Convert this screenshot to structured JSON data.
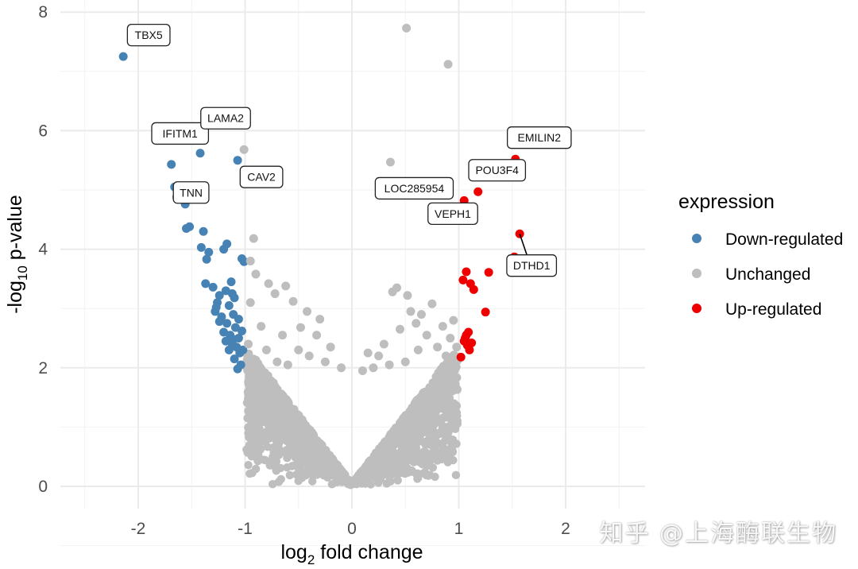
{
  "chart_data": {
    "type": "scatter",
    "title": "",
    "xlabel_main": "log",
    "xlabel_sub": "2",
    "xlabel_rest": " fold change",
    "ylabel_main": "-log",
    "ylabel_sub": "10",
    "ylabel_rest": " p-value",
    "xlim": [
      -2.5,
      2.5
    ],
    "ylim": [
      -0.2,
      8.2
    ],
    "xticks": [
      -2,
      -1,
      0,
      1,
      2
    ],
    "xtick_labels": [
      "-2",
      "-1",
      "0",
      "1",
      "2"
    ],
    "yticks": [
      0,
      2,
      4,
      6,
      8
    ],
    "ytick_labels": [
      "0",
      "2",
      "4",
      "6",
      "8"
    ],
    "grid": true,
    "legend": {
      "title": "expression",
      "position": "right",
      "entries": [
        {
          "label": "Down-regulated",
          "color": "#4682B4"
        },
        {
          "label": "Unchanged",
          "color": "#BEBEBE"
        },
        {
          "label": "Up-regulated",
          "color": "#EE0000"
        }
      ]
    },
    "series": [
      {
        "name": "Down-regulated",
        "color": "#4682B4",
        "points": [
          [
            -2.14,
            7.25
          ],
          [
            -1.69,
            5.43
          ],
          [
            -1.66,
            5.05
          ],
          [
            -1.62,
            4.93
          ],
          [
            -1.64,
            4.88
          ],
          [
            -1.56,
            4.76
          ],
          [
            -1.52,
            4.38
          ],
          [
            -1.55,
            4.35
          ],
          [
            -1.39,
            4.3
          ],
          [
            -1.42,
            5.62
          ],
          [
            -1.07,
            5.5
          ],
          [
            -1.45,
            4.88
          ],
          [
            -1.41,
            4.03
          ],
          [
            -1.34,
            3.95
          ],
          [
            -1.36,
            3.83
          ],
          [
            -1.2,
            4.0
          ],
          [
            -1.17,
            4.09
          ],
          [
            -1.03,
            3.84
          ],
          [
            -1.01,
            3.79
          ],
          [
            -1.37,
            3.42
          ],
          [
            -1.3,
            3.36
          ],
          [
            -1.24,
            3.22
          ],
          [
            -1.26,
            3.1
          ],
          [
            -1.18,
            3.3
          ],
          [
            -1.13,
            3.45
          ],
          [
            -1.12,
            3.25
          ],
          [
            -1.15,
            3.05
          ],
          [
            -1.1,
            3.18
          ],
          [
            -1.28,
            2.95
          ],
          [
            -1.22,
            2.86
          ],
          [
            -1.17,
            2.75
          ],
          [
            -1.11,
            2.9
          ],
          [
            -1.2,
            2.6
          ],
          [
            -1.14,
            2.55
          ],
          [
            -1.09,
            2.68
          ],
          [
            -1.06,
            2.5
          ],
          [
            -1.18,
            2.45
          ],
          [
            -1.12,
            2.4
          ],
          [
            -1.08,
            2.35
          ],
          [
            -1.05,
            2.25
          ],
          [
            -1.1,
            2.15
          ],
          [
            -1.04,
            2.05
          ],
          [
            -1.07,
            1.98
          ],
          [
            -1.15,
            2.3
          ],
          [
            -1.24,
            2.78
          ],
          [
            -1.03,
            2.62
          ],
          [
            -1.02,
            2.3
          ],
          [
            -1.11,
            2.48
          ],
          [
            -1.27,
            3.02
          ],
          [
            -1.06,
            2.82
          ]
        ]
      },
      {
        "name": "Unchanged",
        "color": "#BEBEBE",
        "points": [
          [
            0.51,
            7.73
          ],
          [
            0.9,
            7.12
          ],
          [
            -1.01,
            5.68
          ],
          [
            0.36,
            5.47
          ],
          [
            -0.92,
            4.18
          ],
          [
            -0.95,
            3.8
          ],
          [
            -0.9,
            3.58
          ],
          [
            -0.78,
            3.42
          ],
          [
            -0.62,
            3.38
          ],
          [
            -0.72,
            3.25
          ],
          [
            -0.55,
            3.12
          ],
          [
            -0.42,
            2.95
          ],
          [
            -0.3,
            2.82
          ],
          [
            -0.48,
            2.68
          ],
          [
            -0.65,
            2.55
          ],
          [
            -0.85,
            2.7
          ],
          [
            -0.95,
            3.1
          ],
          [
            -0.97,
            2.4
          ],
          [
            0.42,
            3.35
          ],
          [
            0.38,
            3.28
          ],
          [
            0.52,
            3.22
          ],
          [
            0.55,
            2.95
          ],
          [
            0.65,
            2.9
          ],
          [
            0.75,
            3.08
          ],
          [
            0.85,
            2.7
          ],
          [
            0.92,
            2.5
          ],
          [
            0.95,
            2.8
          ],
          [
            0.6,
            2.75
          ],
          [
            0.45,
            2.65
          ],
          [
            0.3,
            2.4
          ],
          [
            0.25,
            2.2
          ],
          [
            0.7,
            2.55
          ],
          [
            0.8,
            2.35
          ],
          [
            0.88,
            2.2
          ],
          [
            0.98,
            2.35
          ],
          [
            -0.5,
            2.3
          ],
          [
            -0.4,
            2.2
          ],
          [
            -0.25,
            2.1
          ],
          [
            -0.2,
            2.35
          ],
          [
            -0.7,
            2.1
          ],
          [
            -0.8,
            2.3
          ],
          [
            -0.6,
            2.05
          ],
          [
            0.1,
            1.95
          ],
          [
            -0.1,
            2.0
          ],
          [
            0.2,
            2.0
          ],
          [
            0.15,
            2.25
          ],
          [
            0.35,
            2.05
          ],
          [
            0.5,
            2.1
          ],
          [
            0.62,
            2.3
          ],
          [
            -0.33,
            2.55
          ]
        ],
        "cloud": {
          "description": "dense V-shaped mass of unchanged genes",
          "x_range": [
            -1.0,
            1.0
          ],
          "y_range": [
            0,
            2.2
          ]
        }
      },
      {
        "name": "Up-regulated",
        "color": "#EE0000",
        "points": [
          [
            1.53,
            5.52
          ],
          [
            1.18,
            4.97
          ],
          [
            1.05,
            4.82
          ],
          [
            1.13,
            4.64
          ],
          [
            1.57,
            4.26
          ],
          [
            1.52,
            3.87
          ],
          [
            1.07,
            3.62
          ],
          [
            1.28,
            3.61
          ],
          [
            1.04,
            3.48
          ],
          [
            1.11,
            3.42
          ],
          [
            1.14,
            3.32
          ],
          [
            1.25,
            2.94
          ],
          [
            1.07,
            2.55
          ],
          [
            1.12,
            2.42
          ],
          [
            1.08,
            2.38
          ],
          [
            1.05,
            2.45
          ],
          [
            1.1,
            2.3
          ],
          [
            1.02,
            2.18
          ],
          [
            1.06,
            2.5
          ],
          [
            1.09,
            2.6
          ]
        ]
      }
    ],
    "annotations": [
      {
        "label": "TBX5",
        "x": -2.14,
        "y": 7.25
      },
      {
        "label": "IFITM1",
        "x": -1.69,
        "y": 5.43
      },
      {
        "label": "LAMA2",
        "x": -1.42,
        "y": 5.62
      },
      {
        "label": "TNN",
        "x": -1.52,
        "y": 4.38
      },
      {
        "label": "CAV2",
        "x": -1.07,
        "y": 5.5
      },
      {
        "label": "LOC285954",
        "x": 0.36,
        "y": 5.47
      },
      {
        "label": "EMILIN2",
        "x": 1.53,
        "y": 5.52
      },
      {
        "label": "POU3F4",
        "x": 1.18,
        "y": 4.97
      },
      {
        "label": "VEPH1",
        "x": 1.13,
        "y": 4.64
      },
      {
        "label": "DTHD1",
        "x": 1.57,
        "y": 4.26
      }
    ]
  },
  "watermark": "知乎 @上海酶联生物"
}
